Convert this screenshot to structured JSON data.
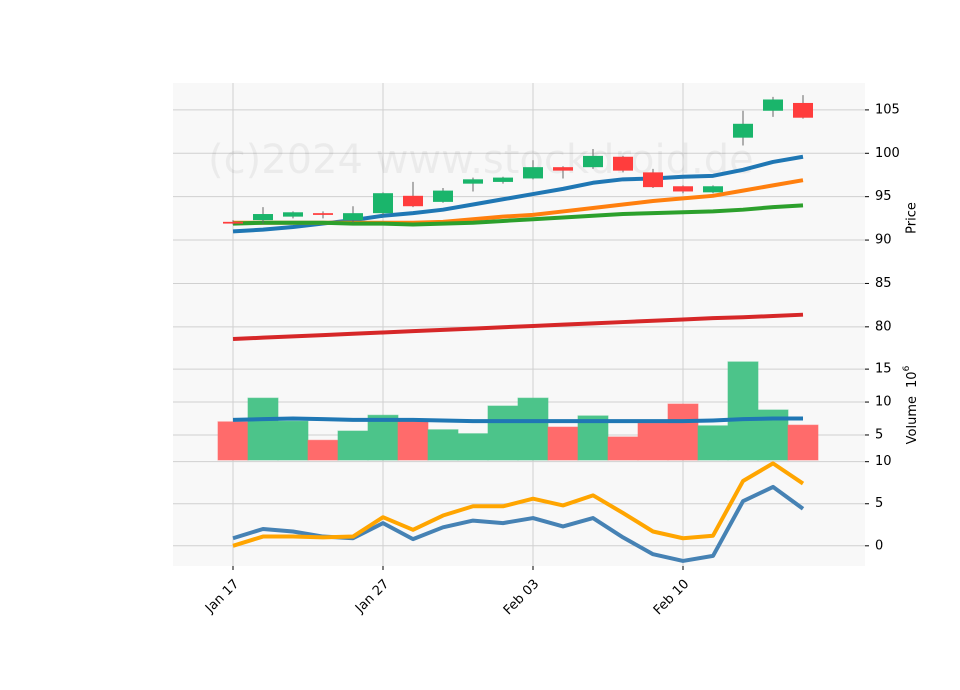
{
  "chart_data": {
    "type": "candlestick",
    "watermark": "(c)2024 www.stockdroid.de",
    "categories": [
      "Jan 17",
      null,
      null,
      null,
      null,
      "Jan 27",
      null,
      null,
      null,
      null,
      "Feb 03",
      null,
      null,
      null,
      null,
      "Feb 10",
      null,
      null,
      null,
      null
    ],
    "grid": true,
    "price": {
      "ylabel": "Price",
      "ylim": [
        77.1,
        108.1
      ],
      "yticks": [
        80,
        85,
        90,
        95,
        100,
        105
      ],
      "up_color": "#1ab56b",
      "down_color": "#ff3d3d",
      "open": [
        92.1,
        92.3,
        92.7,
        93.1,
        92.3,
        93.1,
        95.1,
        94.4,
        96.5,
        96.7,
        97.1,
        98.4,
        98.4,
        99.6,
        97.8,
        96.2,
        95.5,
        101.8,
        104.9,
        105.8
      ],
      "high": [
        92.3,
        93.8,
        93.3,
        93.3,
        93.9,
        95.5,
        96.7,
        96.0,
        97.2,
        97.3,
        99.2,
        98.5,
        100.5,
        99.7,
        98.2,
        96.3,
        96.3,
        104.9,
        106.5,
        106.7
      ],
      "low": [
        91.8,
        91.9,
        92.5,
        92.5,
        92.0,
        92.9,
        93.8,
        94.3,
        95.6,
        96.5,
        97.0,
        97.1,
        98.2,
        97.8,
        96.0,
        95.4,
        95.4,
        100.9,
        104.2,
        104.0
      ],
      "close": [
        91.9,
        93.0,
        93.2,
        92.9,
        93.1,
        95.4,
        93.9,
        95.7,
        97.0,
        97.2,
        98.4,
        98.0,
        99.7,
        98.0,
        96.1,
        95.6,
        96.2,
        103.4,
        106.2,
        104.1
      ],
      "ma": [
        {
          "color": "#1f77b4",
          "values": [
            91.0,
            91.2,
            91.5,
            91.9,
            92.3,
            92.8,
            93.1,
            93.5,
            94.1,
            94.7,
            95.3,
            95.9,
            96.6,
            97.0,
            97.1,
            97.3,
            97.4,
            98.1,
            99.0,
            99.6
          ]
        },
        {
          "color": "#ff7f0e",
          "values": [
            92.0,
            92.0,
            92.0,
            92.0,
            92.0,
            92.0,
            92.0,
            92.1,
            92.4,
            92.7,
            92.9,
            93.3,
            93.7,
            94.1,
            94.5,
            94.8,
            95.1,
            95.7,
            96.3,
            96.9
          ]
        },
        {
          "color": "#2ca02c",
          "values": [
            91.9,
            92.0,
            92.0,
            92.0,
            91.9,
            91.9,
            91.8,
            91.9,
            92.0,
            92.2,
            92.4,
            92.6,
            92.8,
            93.0,
            93.1,
            93.2,
            93.3,
            93.5,
            93.8,
            94.0
          ]
        },
        {
          "color": "#d62728",
          "values": [
            78.6,
            78.75,
            78.9,
            79.05,
            79.2,
            79.35,
            79.5,
            79.65,
            79.8,
            79.95,
            80.1,
            80.25,
            80.4,
            80.55,
            80.7,
            80.85,
            81.0,
            81.1,
            81.25,
            81.4
          ]
        }
      ]
    },
    "volume": {
      "ylabel": "Volume",
      "scale_base": "10",
      "scale_exponent": "6",
      "ylim": [
        1.2,
        17.6
      ],
      "yticks": [
        5,
        10,
        15
      ],
      "up_color": "#4cc48a",
      "down_color": "#ff6b6b",
      "values": [
        7.0,
        10.6,
        7.1,
        4.2,
        5.6,
        8.0,
        7.3,
        5.8,
        5.2,
        9.4,
        10.6,
        6.2,
        7.9,
        4.7,
        6.8,
        9.7,
        6.4,
        16.1,
        8.8,
        6.5
      ],
      "ma": {
        "color": "#1f77b4",
        "values": [
          7.3,
          7.4,
          7.5,
          7.4,
          7.3,
          7.3,
          7.3,
          7.2,
          7.1,
          7.1,
          7.1,
          7.1,
          7.1,
          7.1,
          7.1,
          7.1,
          7.2,
          7.4,
          7.5,
          7.5
        ]
      }
    },
    "indicator": {
      "ylim": [
        -2.4,
        10.2
      ],
      "yticks": [
        0,
        5,
        10
      ],
      "series": [
        {
          "color": "#4682b4",
          "values": [
            0.9,
            2.0,
            1.7,
            1.1,
            0.9,
            2.7,
            0.8,
            2.2,
            3.0,
            2.7,
            3.3,
            2.3,
            3.3,
            1.0,
            -1.0,
            -1.8,
            -1.2,
            5.3,
            7.0,
            4.4
          ]
        },
        {
          "color": "#ffa500",
          "values": [
            0.0,
            1.1,
            1.1,
            1.0,
            1.1,
            3.4,
            1.9,
            3.6,
            4.7,
            4.7,
            5.6,
            4.8,
            6.0,
            3.9,
            1.7,
            0.9,
            1.2,
            7.7,
            9.8,
            7.4
          ]
        }
      ]
    }
  }
}
